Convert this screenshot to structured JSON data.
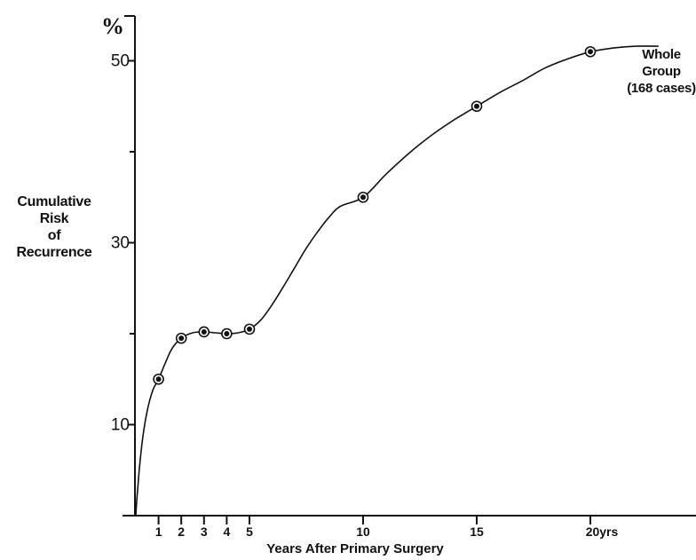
{
  "chart_data": {
    "type": "line",
    "unit_symbol": "%",
    "xlabel": "Years After Primary Surgery",
    "ylabel_lines": [
      "Cumulative",
      "Risk",
      "of",
      "Recurrence"
    ],
    "x_ticks": [
      {
        "value": 1,
        "label": "1"
      },
      {
        "value": 2,
        "label": "2"
      },
      {
        "value": 3,
        "label": "3"
      },
      {
        "value": 4,
        "label": "4"
      },
      {
        "value": 5,
        "label": "5"
      },
      {
        "value": 10,
        "label": "10"
      },
      {
        "value": 15,
        "label": "15"
      },
      {
        "value": 20,
        "label": "20yrs"
      }
    ],
    "y_ticks": [
      {
        "value": 10,
        "label": "10"
      },
      {
        "value": 30,
        "label": "30"
      },
      {
        "value": 50,
        "label": "50"
      }
    ],
    "y_minor_ticks": [
      20,
      40
    ],
    "xlim": [
      0,
      24
    ],
    "ylim": [
      0,
      55
    ],
    "series": [
      {
        "label_lines": [
          "Whole",
          "Group",
          "(168 cases)"
        ],
        "points": [
          {
            "x": 1,
            "y": 15
          },
          {
            "x": 2,
            "y": 19.5
          },
          {
            "x": 3,
            "y": 20.2
          },
          {
            "x": 4,
            "y": 20
          },
          {
            "x": 5,
            "y": 20.5
          },
          {
            "x": 10,
            "y": 35
          },
          {
            "x": 15,
            "y": 45
          },
          {
            "x": 20,
            "y": 51
          }
        ],
        "curve": [
          [
            0,
            0
          ],
          [
            0.05,
            2
          ],
          [
            0.15,
            5
          ],
          [
            0.3,
            8.5
          ],
          [
            0.5,
            11.5
          ],
          [
            0.75,
            13.8
          ],
          [
            1,
            15
          ],
          [
            1.3,
            16.8
          ],
          [
            1.6,
            18.4
          ],
          [
            2,
            19.5
          ],
          [
            2.5,
            20.1
          ],
          [
            3,
            20.2
          ],
          [
            3.5,
            20.1
          ],
          [
            4,
            20
          ],
          [
            4.5,
            20.1
          ],
          [
            5,
            20.5
          ],
          [
            5.5,
            21.5
          ],
          [
            6,
            23.2
          ],
          [
            6.5,
            25.2
          ],
          [
            7,
            27.3
          ],
          [
            7.5,
            29.4
          ],
          [
            8,
            31.2
          ],
          [
            8.5,
            32.8
          ],
          [
            9,
            34
          ],
          [
            10,
            35
          ],
          [
            11,
            37.5
          ],
          [
            12,
            39.8
          ],
          [
            13,
            41.8
          ],
          [
            14,
            43.5
          ],
          [
            15,
            45
          ],
          [
            16,
            46.5
          ],
          [
            17,
            47.8
          ],
          [
            18,
            49.2
          ],
          [
            19,
            50.2
          ],
          [
            20,
            51
          ],
          [
            21,
            51.4
          ],
          [
            22,
            51.6
          ],
          [
            23,
            51.6
          ]
        ]
      }
    ],
    "grid": false,
    "legend": "none",
    "colors": {
      "ink": "#111111",
      "background": "#ffffff"
    }
  }
}
